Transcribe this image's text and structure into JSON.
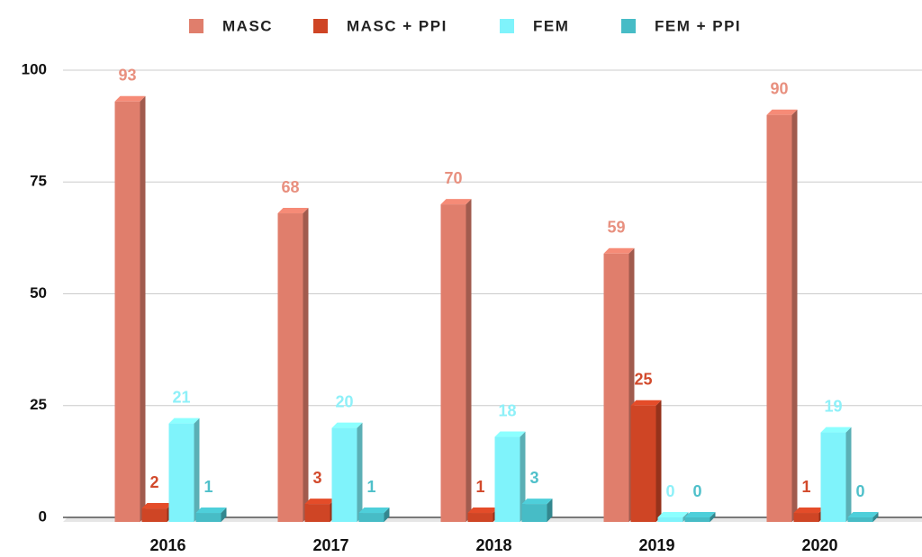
{
  "chart_data": {
    "type": "bar3d",
    "categories": [
      "2016",
      "2017",
      "2018",
      "2019",
      "2020"
    ],
    "series": [
      {
        "name": "MASC",
        "color": "#e07e6c",
        "label_color": "#e8907f",
        "values": [
          93,
          68,
          70,
          59,
          90
        ]
      },
      {
        "name": "MASC + PPI",
        "color": "#cf4525",
        "label_color": "#d24a2c",
        "values": [
          2,
          3,
          1,
          25,
          1
        ]
      },
      {
        "name": "FEM",
        "color": "#7ff3fb",
        "label_color": "#8ef0f8",
        "values": [
          21,
          20,
          18,
          0,
          19
        ]
      },
      {
        "name": "FEM + PPI",
        "color": "#47bcc6",
        "label_color": "#4fc0ca",
        "values": [
          1,
          1,
          3,
          0,
          0
        ]
      }
    ],
    "ylim": [
      0,
      100
    ],
    "yticks": [
      0,
      25,
      50,
      75,
      100
    ],
    "grid": true,
    "legend": "top"
  }
}
